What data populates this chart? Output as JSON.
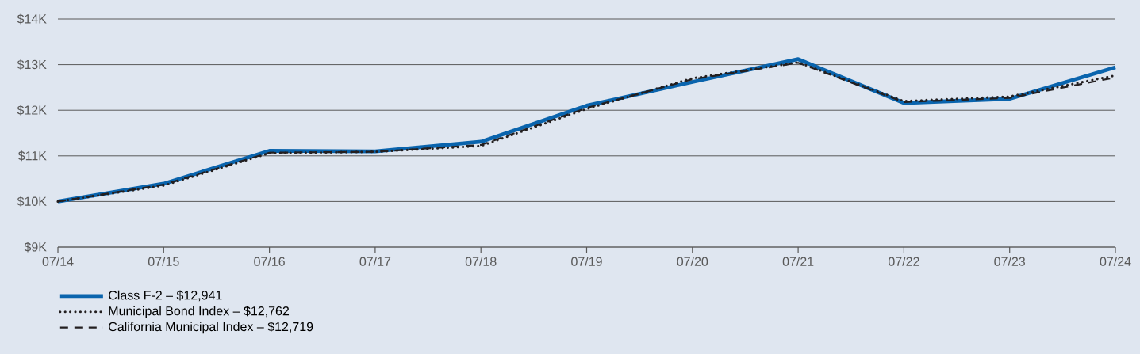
{
  "chart_data": {
    "type": "line",
    "x": [
      "2014-07",
      "2015-07",
      "2016-07",
      "2017-07",
      "2018-07",
      "2019-07",
      "2020-07",
      "2021-07",
      "2022-07",
      "2023-07",
      "2024-07"
    ],
    "series": [
      {
        "name": "Class F-2 – $12,941",
        "color": "#0a64ad",
        "line_style": "solid",
        "values": [
          10000,
          10390,
          11110,
          11100,
          11310,
          12100,
          12620,
          13120,
          12160,
          12250,
          12941
        ]
      },
      {
        "name": "Municipal Bond Index – $12,762",
        "color": "#231f20",
        "line_style": "dotted",
        "values": [
          10000,
          10350,
          11060,
          11090,
          11220,
          12030,
          12700,
          13050,
          12200,
          12300,
          12762
        ]
      },
      {
        "name": "California Municipal Index – $12,719",
        "color": "#231f20",
        "line_style": "dashed",
        "values": [
          10000,
          10370,
          11070,
          11090,
          11240,
          12050,
          12680,
          13040,
          12180,
          12270,
          12719
        ]
      }
    ],
    "xlim": [
      "2014-07",
      "2024-07"
    ],
    "xticks": [
      {
        "value": "2014-07",
        "label": "07/14"
      },
      {
        "value": "2015-07",
        "label": "07/15"
      },
      {
        "value": "2016-07",
        "label": "07/16"
      },
      {
        "value": "2017-07",
        "label": "07/17"
      },
      {
        "value": "2018-07",
        "label": "07/18"
      },
      {
        "value": "2019-07",
        "label": "07/19"
      },
      {
        "value": "2020-07",
        "label": "07/20"
      },
      {
        "value": "2021-07",
        "label": "07/21"
      },
      {
        "value": "2022-07",
        "label": "07/22"
      },
      {
        "value": "2023-07",
        "label": "07/23"
      },
      {
        "value": "2024-07",
        "label": "07/24"
      }
    ],
    "ylim": [
      9000,
      14000
    ],
    "yticks": [
      {
        "value": 9000,
        "label": "$9K"
      },
      {
        "value": 10000,
        "label": "$10K"
      },
      {
        "value": 11000,
        "label": "$11K"
      },
      {
        "value": 12000,
        "label": "$12K"
      },
      {
        "value": 13000,
        "label": "$13K"
      },
      {
        "value": 14000,
        "label": "$14K"
      }
    ],
    "grid": "y",
    "legend": "bottom"
  }
}
